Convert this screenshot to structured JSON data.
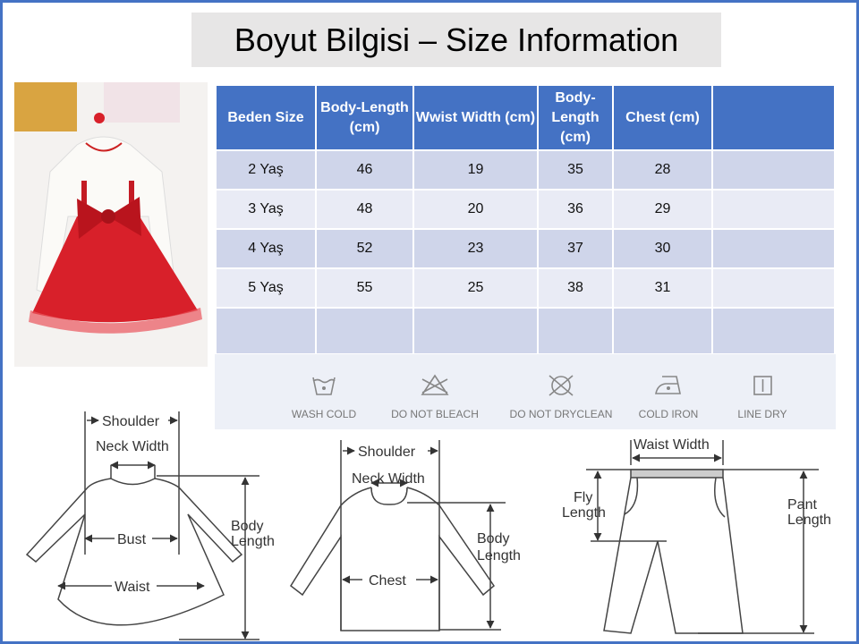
{
  "title": "Boyut Bilgisi – Size Information",
  "table": {
    "headers": [
      "Beden Size",
      "Body-Length (cm)",
      "Wwist Width (cm)",
      "Body-Length (cm)",
      "Chest (cm)",
      ""
    ],
    "rows": [
      [
        "2 Yaş",
        "46",
        "19",
        "35",
        "28",
        ""
      ],
      [
        "3 Yaş",
        "48",
        "20",
        "36",
        "29",
        ""
      ],
      [
        "4 Yaş",
        "52",
        "23",
        "37",
        "30",
        ""
      ],
      [
        "5  Yaş",
        "55",
        "25",
        "38",
        "31",
        ""
      ],
      [
        "",
        "",
        "",
        "",
        "",
        ""
      ]
    ]
  },
  "care": [
    {
      "icon": "wash-cold-icon",
      "label": "WASH COLD"
    },
    {
      "icon": "do-not-bleach-icon",
      "label": "DO NOT BLEACH"
    },
    {
      "icon": "do-not-dryclean-icon",
      "label": "DO NOT DRYCLEAN"
    },
    {
      "icon": "cold-iron-icon",
      "label": "COLD IRON"
    },
    {
      "icon": "line-dry-icon",
      "label": "LINE DRY"
    }
  ],
  "diagrams": {
    "dress": {
      "shoulder": "Shoulder",
      "neck": "Neck Width",
      "bust": "Bust",
      "waist": "Waist",
      "length1": "Body",
      "length2": "Length"
    },
    "shirt": {
      "shoulder": "Shoulder",
      "neck": "Neck Width",
      "chest": "Chest",
      "length1": "Body",
      "length2": "Length"
    },
    "pants": {
      "waist": "Waist Width",
      "fly1": "Fly",
      "fly2": "Length",
      "pant1": "Pant",
      "pant2": "Length"
    }
  },
  "colors": {
    "header": "#4472c4",
    "row_odd": "#cfd5ea",
    "row_even": "#e9ebf5",
    "frame": "#4472c4",
    "dress": "#d8202a"
  }
}
